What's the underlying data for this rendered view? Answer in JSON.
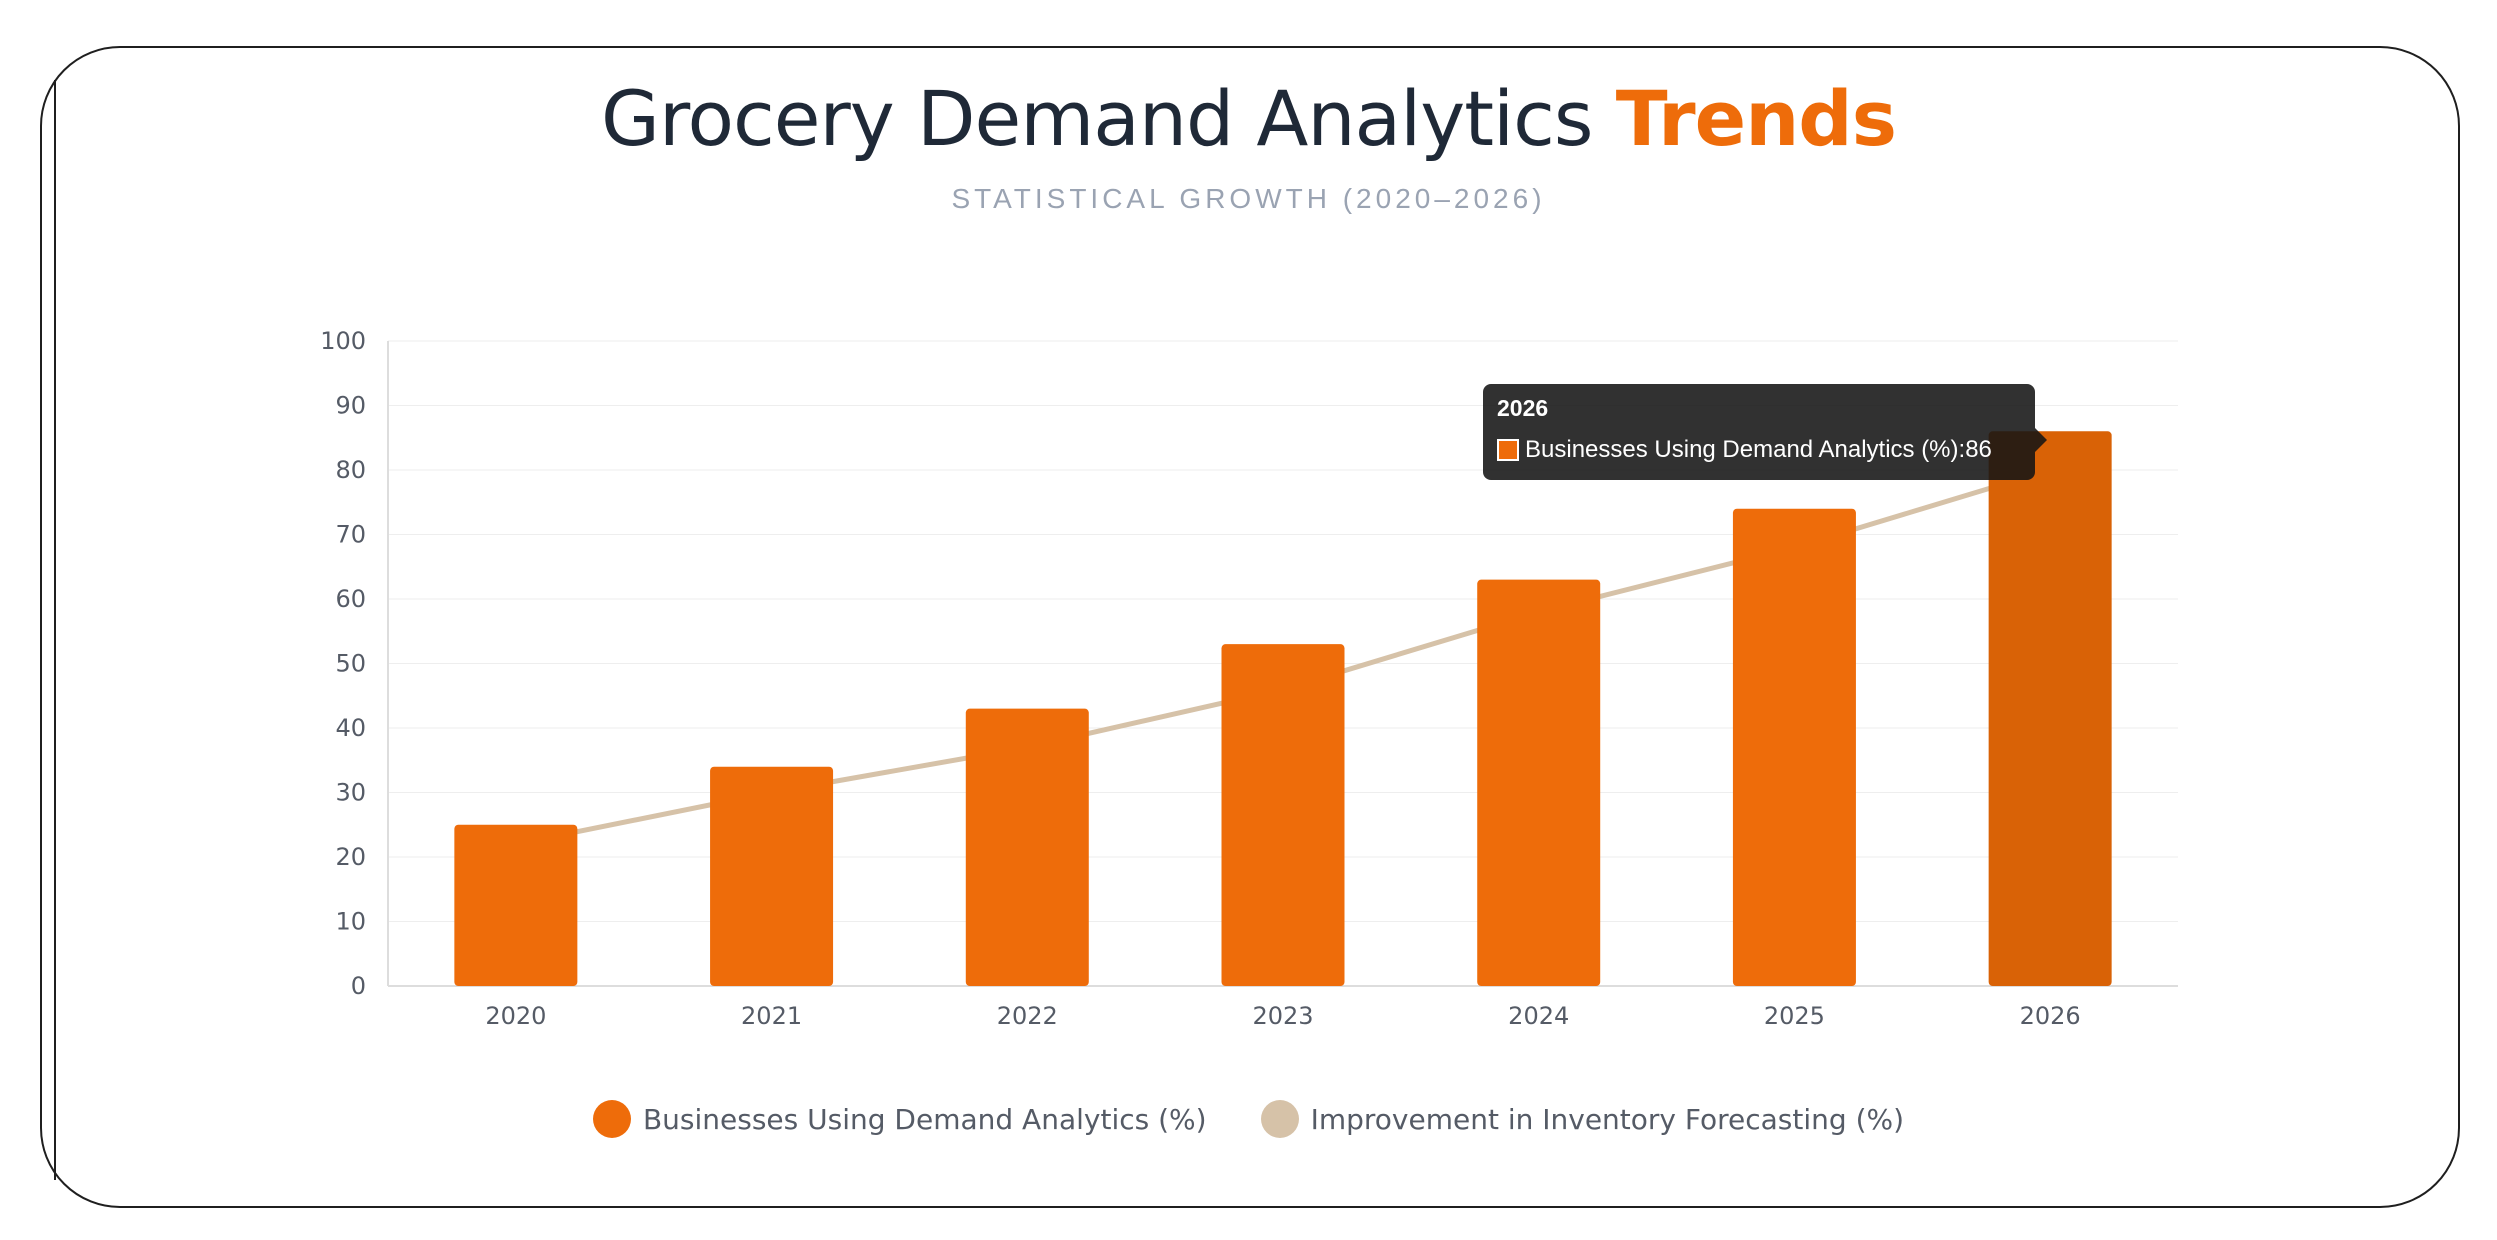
{
  "header": {
    "title_main": "Grocery Demand Analytics",
    "title_accent": "Trends",
    "subtitle": "STATISTICAL GROWTH (2020–2026)"
  },
  "colors": {
    "bar": "#ee6c0a",
    "bar_hover": "#d96206",
    "line": "#d6c2a8",
    "grid": "#eeeeee",
    "axis": "#dddddd"
  },
  "chart_data": {
    "type": "bar",
    "categories": [
      "2020",
      "2021",
      "2022",
      "2023",
      "2024",
      "2025",
      "2026"
    ],
    "series": [
      {
        "name": "Businesses Using Demand Analytics (%)",
        "type": "bar",
        "values": [
          25,
          34,
          43,
          53,
          63,
          74,
          86
        ]
      },
      {
        "name": "Improvement in Inventory Forecasting (%)",
        "type": "line",
        "values": [
          22,
          30,
          37,
          46,
          58,
          68,
          80
        ]
      }
    ],
    "ylim": [
      0,
      100
    ],
    "yticks": [
      0,
      10,
      20,
      30,
      40,
      50,
      60,
      70,
      80,
      90,
      100
    ],
    "legend_position": "bottom"
  },
  "tooltip": {
    "title": "2026",
    "label": "Businesses Using Demand Analytics (%): ",
    "value": "86"
  }
}
